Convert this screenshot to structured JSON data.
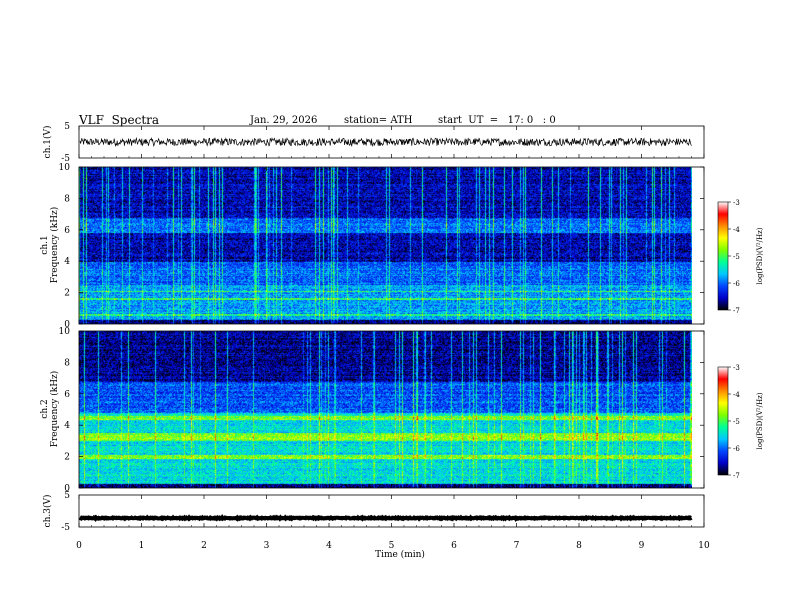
{
  "header": {
    "title": "VLF  Spectra",
    "date": "Jan. 29, 2026",
    "station": "station= ATH",
    "start": "start  UT  =   17: 0   : 0"
  },
  "chart_data": [
    {
      "type": "line",
      "id": "ch1_waveform",
      "ylabel": "ch.1(V)",
      "ylim": [
        -5,
        5
      ],
      "yticks": [
        -5,
        5
      ],
      "x_range_min": [
        0,
        9.8
      ],
      "description_values": {
        "mean": 0,
        "approx_amplitude": 1.2
      }
    },
    {
      "type": "heatmap",
      "id": "ch1_spectrogram",
      "ylabel_top": "ch.1",
      "ylabel": "Frequency (kHz)",
      "ylim": [
        0,
        10
      ],
      "yticks": [
        0,
        2,
        4,
        6,
        8,
        10
      ],
      "x_range_min": [
        0,
        9.8
      ],
      "colorbar": {
        "label": "log(PSD)(V²/Hz)",
        "range": [
          -7,
          -3
        ],
        "ticks": [
          -3,
          -4,
          -5,
          -6,
          -7
        ]
      }
    },
    {
      "type": "heatmap",
      "id": "ch2_spectrogram",
      "ylabel_top": "ch.2",
      "ylabel": "Frequency (kHz)",
      "ylim": [
        0,
        10
      ],
      "yticks": [
        0,
        2,
        4,
        6,
        8,
        10
      ],
      "x_range_min": [
        0,
        9.8
      ],
      "colorbar": {
        "label": "log(PSD)(V²/Hz)",
        "range": [
          -7,
          -3
        ],
        "ticks": [
          -3,
          -4,
          -5,
          -6,
          -7
        ]
      }
    },
    {
      "type": "line",
      "id": "ch3_waveform",
      "ylabel": "ch.3(V)",
      "ylim": [
        -5,
        5
      ],
      "yticks": [
        -5,
        5
      ],
      "x_range_min": [
        0,
        9.8
      ],
      "description_values": {
        "mean": -2.2,
        "approx_amplitude": 0.15
      }
    }
  ],
  "x_axis": {
    "label": "Time  (min)",
    "range": [
      0,
      10
    ],
    "ticks": [
      "0",
      "1",
      "2",
      "3",
      "4",
      "5",
      "6",
      "7",
      "8",
      "9",
      "10"
    ]
  },
  "colors": {
    "colormap": [
      "#000000",
      "#0000c8",
      "#0046ff",
      "#00c8ff",
      "#00ff96",
      "#7dff00",
      "#ffff00",
      "#ff8c00",
      "#ff0000",
      "#ffffff"
    ]
  }
}
